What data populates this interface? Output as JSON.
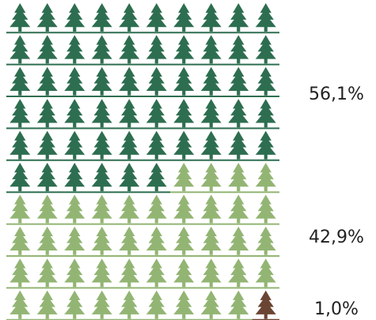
{
  "chart_data": {
    "type": "pictogram",
    "grid": {
      "rows": 10,
      "cols": 10
    },
    "total_units": 100,
    "series": [
      {
        "label": "56,1%",
        "value": 56.1,
        "units": 56,
        "color": "#2e6e50"
      },
      {
        "label": "42,9%",
        "value": 42.9,
        "units": 43,
        "color": "#93b574"
      },
      {
        "label": "1,0%",
        "value": 1.0,
        "units": 1,
        "color": "#6b4533"
      }
    ],
    "icon": "tree-icon"
  }
}
